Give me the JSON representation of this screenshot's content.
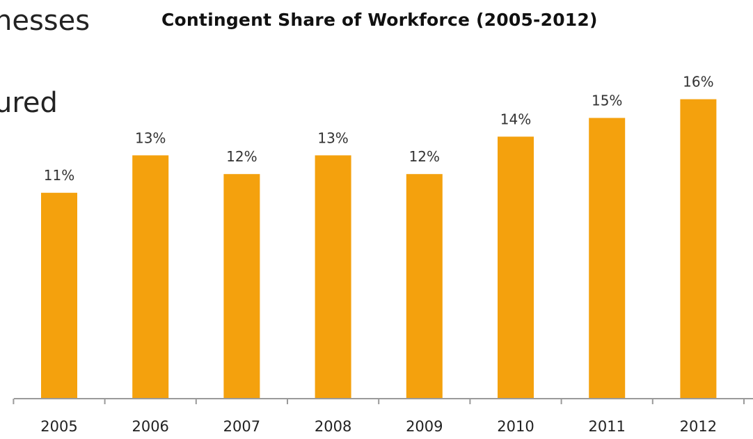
{
  "slide_text": {
    "line1": "nesses",
    "line2": "ured"
  },
  "chart_data": {
    "type": "bar",
    "title": "Contingent Share of Workforce (2005-2012)",
    "categories": [
      "2005",
      "2006",
      "2007",
      "2008",
      "2009",
      "2010",
      "2011",
      "2012"
    ],
    "values": [
      11,
      13,
      12,
      13,
      12,
      14,
      15,
      16
    ],
    "data_labels": [
      "11%",
      "13%",
      "12%",
      "13%",
      "12%",
      "14%",
      "15%",
      "16%"
    ],
    "unit": "%",
    "xlabel": "",
    "ylabel": "",
    "ylim": [
      0,
      16
    ],
    "grid": false,
    "legend": "none",
    "bar_color": "#F4A10D"
  }
}
